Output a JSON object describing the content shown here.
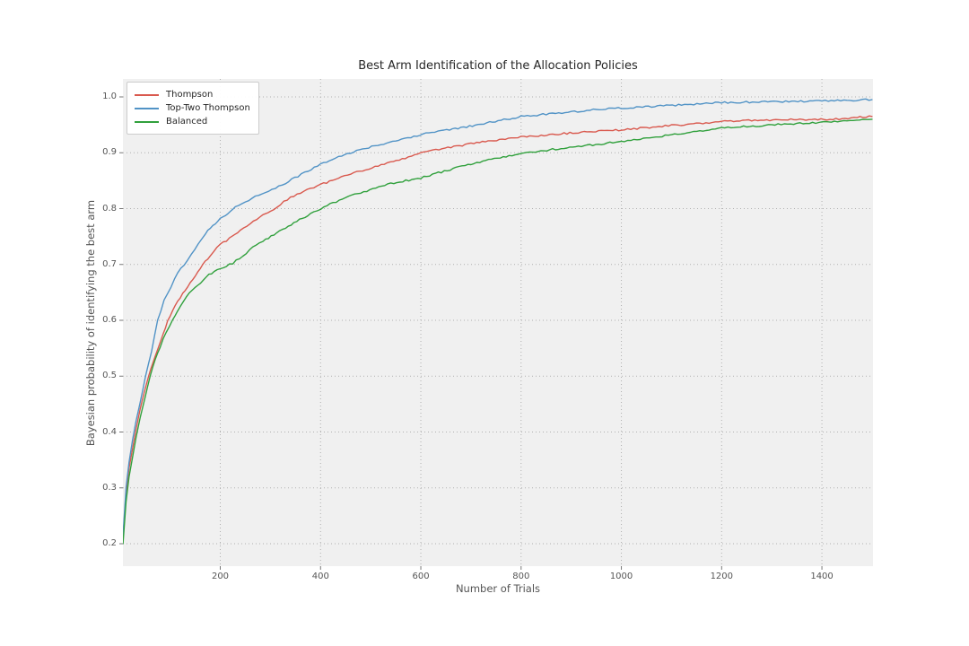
{
  "title": "Best Arm Identification of the Allocation Policies",
  "axes": {
    "xlabel": "Number of Trials",
    "ylabel": "Bayesian probability of identifying the best arm"
  },
  "style": {
    "plot_background": "#f0f0f0",
    "figure_background": "#ffffff",
    "grid_color": "#b0b0b0",
    "tick_color": "#777777",
    "tick_label_color": "#555555",
    "title_color": "#262626"
  },
  "legend": {
    "position": "upper left",
    "items": [
      {
        "label": "Thompson",
        "color": "#d9594e"
      },
      {
        "label": "Top-Two Thompson",
        "color": "#5193c6"
      },
      {
        "label": "Balanced",
        "color": "#30a03c"
      }
    ]
  },
  "chart_data": {
    "type": "line",
    "title": "Best Arm Identification of the Allocation Policies",
    "xlabel": "Number of Trials",
    "ylabel": "Bayesian probability of identifying the best arm",
    "xlim": [
      0,
      1500
    ],
    "ylim": [
      0.2,
      1.0
    ],
    "x_ticks": [
      200,
      400,
      600,
      800,
      1000,
      1200,
      1400
    ],
    "y_ticks": [
      0.2,
      0.3,
      0.4,
      0.5,
      0.6,
      0.7,
      0.8,
      0.9,
      1.0
    ],
    "grid": "dotted",
    "legend_position": "upper left",
    "series": [
      {
        "name": "Thompson",
        "color": "#d9594e",
        "points": [
          [
            6,
            0.21
          ],
          [
            12,
            0.29
          ],
          [
            18,
            0.335
          ],
          [
            25,
            0.37
          ],
          [
            32,
            0.405
          ],
          [
            40,
            0.44
          ],
          [
            48,
            0.47
          ],
          [
            57,
            0.5
          ],
          [
            66,
            0.525
          ],
          [
            76,
            0.55
          ],
          [
            86,
            0.575
          ],
          [
            95,
            0.598
          ],
          [
            110,
            0.625
          ],
          [
            125,
            0.648
          ],
          [
            140,
            0.668
          ],
          [
            155,
            0.685
          ],
          [
            165,
            0.7
          ],
          [
            180,
            0.716
          ],
          [
            200,
            0.736
          ],
          [
            218,
            0.746
          ],
          [
            240,
            0.76
          ],
          [
            260,
            0.774
          ],
          [
            285,
            0.788
          ],
          [
            300,
            0.795
          ],
          [
            320,
            0.808
          ],
          [
            340,
            0.82
          ],
          [
            360,
            0.828
          ],
          [
            380,
            0.836
          ],
          [
            400,
            0.843
          ],
          [
            430,
            0.852
          ],
          [
            460,
            0.862
          ],
          [
            490,
            0.87
          ],
          [
            515,
            0.876
          ],
          [
            545,
            0.884
          ],
          [
            575,
            0.892
          ],
          [
            600,
            0.899
          ],
          [
            630,
            0.905
          ],
          [
            660,
            0.91
          ],
          [
            700,
            0.916
          ],
          [
            740,
            0.921
          ],
          [
            780,
            0.926
          ],
          [
            800,
            0.928
          ],
          [
            840,
            0.931
          ],
          [
            880,
            0.934
          ],
          [
            920,
            0.937
          ],
          [
            960,
            0.939
          ],
          [
            1000,
            0.941
          ],
          [
            1050,
            0.945
          ],
          [
            1100,
            0.949
          ],
          [
            1150,
            0.952
          ],
          [
            1200,
            0.956
          ],
          [
            1260,
            0.958
          ],
          [
            1320,
            0.959
          ],
          [
            1380,
            0.959
          ],
          [
            1440,
            0.961
          ],
          [
            1500,
            0.965
          ]
        ]
      },
      {
        "name": "Top-Two Thompson",
        "color": "#5193c6",
        "points": [
          [
            6,
            0.215
          ],
          [
            12,
            0.3
          ],
          [
            18,
            0.345
          ],
          [
            25,
            0.385
          ],
          [
            32,
            0.42
          ],
          [
            40,
            0.452
          ],
          [
            51,
            0.5
          ],
          [
            63,
            0.545
          ],
          [
            75,
            0.6
          ],
          [
            88,
            0.635
          ],
          [
            102,
            0.66
          ],
          [
            115,
            0.685
          ],
          [
            128,
            0.7
          ],
          [
            142,
            0.718
          ],
          [
            156,
            0.737
          ],
          [
            170,
            0.755
          ],
          [
            185,
            0.77
          ],
          [
            200,
            0.782
          ],
          [
            215,
            0.792
          ],
          [
            230,
            0.802
          ],
          [
            250,
            0.812
          ],
          [
            270,
            0.822
          ],
          [
            290,
            0.829
          ],
          [
            310,
            0.836
          ],
          [
            330,
            0.846
          ],
          [
            355,
            0.858
          ],
          [
            375,
            0.868
          ],
          [
            400,
            0.879
          ],
          [
            430,
            0.89
          ],
          [
            460,
            0.9
          ],
          [
            490,
            0.908
          ],
          [
            520,
            0.915
          ],
          [
            550,
            0.922
          ],
          [
            580,
            0.928
          ],
          [
            610,
            0.934
          ],
          [
            640,
            0.939
          ],
          [
            680,
            0.945
          ],
          [
            720,
            0.951
          ],
          [
            760,
            0.958
          ],
          [
            800,
            0.965
          ],
          [
            850,
            0.969
          ],
          [
            900,
            0.973
          ],
          [
            950,
            0.977
          ],
          [
            1000,
            0.98
          ],
          [
            1060,
            0.983
          ],
          [
            1120,
            0.986
          ],
          [
            1200,
            0.99
          ],
          [
            1280,
            0.991
          ],
          [
            1340,
            0.992
          ],
          [
            1400,
            0.993
          ],
          [
            1450,
            0.994
          ],
          [
            1500,
            0.995
          ]
        ]
      },
      {
        "name": "Balanced",
        "color": "#30a03c",
        "points": [
          [
            6,
            0.2
          ],
          [
            12,
            0.275
          ],
          [
            18,
            0.32
          ],
          [
            25,
            0.355
          ],
          [
            32,
            0.39
          ],
          [
            40,
            0.425
          ],
          [
            50,
            0.462
          ],
          [
            60,
            0.5
          ],
          [
            70,
            0.53
          ],
          [
            80,
            0.553
          ],
          [
            92,
            0.578
          ],
          [
            105,
            0.6
          ],
          [
            120,
            0.625
          ],
          [
            138,
            0.648
          ],
          [
            155,
            0.662
          ],
          [
            172,
            0.678
          ],
          [
            188,
            0.688
          ],
          [
            200,
            0.694
          ],
          [
            212,
            0.697
          ],
          [
            225,
            0.702
          ],
          [
            245,
            0.716
          ],
          [
            265,
            0.73
          ],
          [
            285,
            0.742
          ],
          [
            307,
            0.753
          ],
          [
            330,
            0.765
          ],
          [
            358,
            0.78
          ],
          [
            380,
            0.79
          ],
          [
            400,
            0.8
          ],
          [
            425,
            0.81
          ],
          [
            450,
            0.82
          ],
          [
            480,
            0.828
          ],
          [
            510,
            0.837
          ],
          [
            540,
            0.845
          ],
          [
            570,
            0.85
          ],
          [
            600,
            0.855
          ],
          [
            635,
            0.864
          ],
          [
            670,
            0.873
          ],
          [
            700,
            0.88
          ],
          [
            735,
            0.887
          ],
          [
            770,
            0.893
          ],
          [
            800,
            0.898
          ],
          [
            840,
            0.903
          ],
          [
            880,
            0.908
          ],
          [
            920,
            0.912
          ],
          [
            960,
            0.916
          ],
          [
            1000,
            0.92
          ],
          [
            1050,
            0.926
          ],
          [
            1100,
            0.932
          ],
          [
            1150,
            0.938
          ],
          [
            1200,
            0.944
          ],
          [
            1250,
            0.947
          ],
          [
            1300,
            0.95
          ],
          [
            1350,
            0.952
          ],
          [
            1400,
            0.954
          ],
          [
            1450,
            0.957
          ],
          [
            1500,
            0.96
          ]
        ]
      }
    ]
  }
}
